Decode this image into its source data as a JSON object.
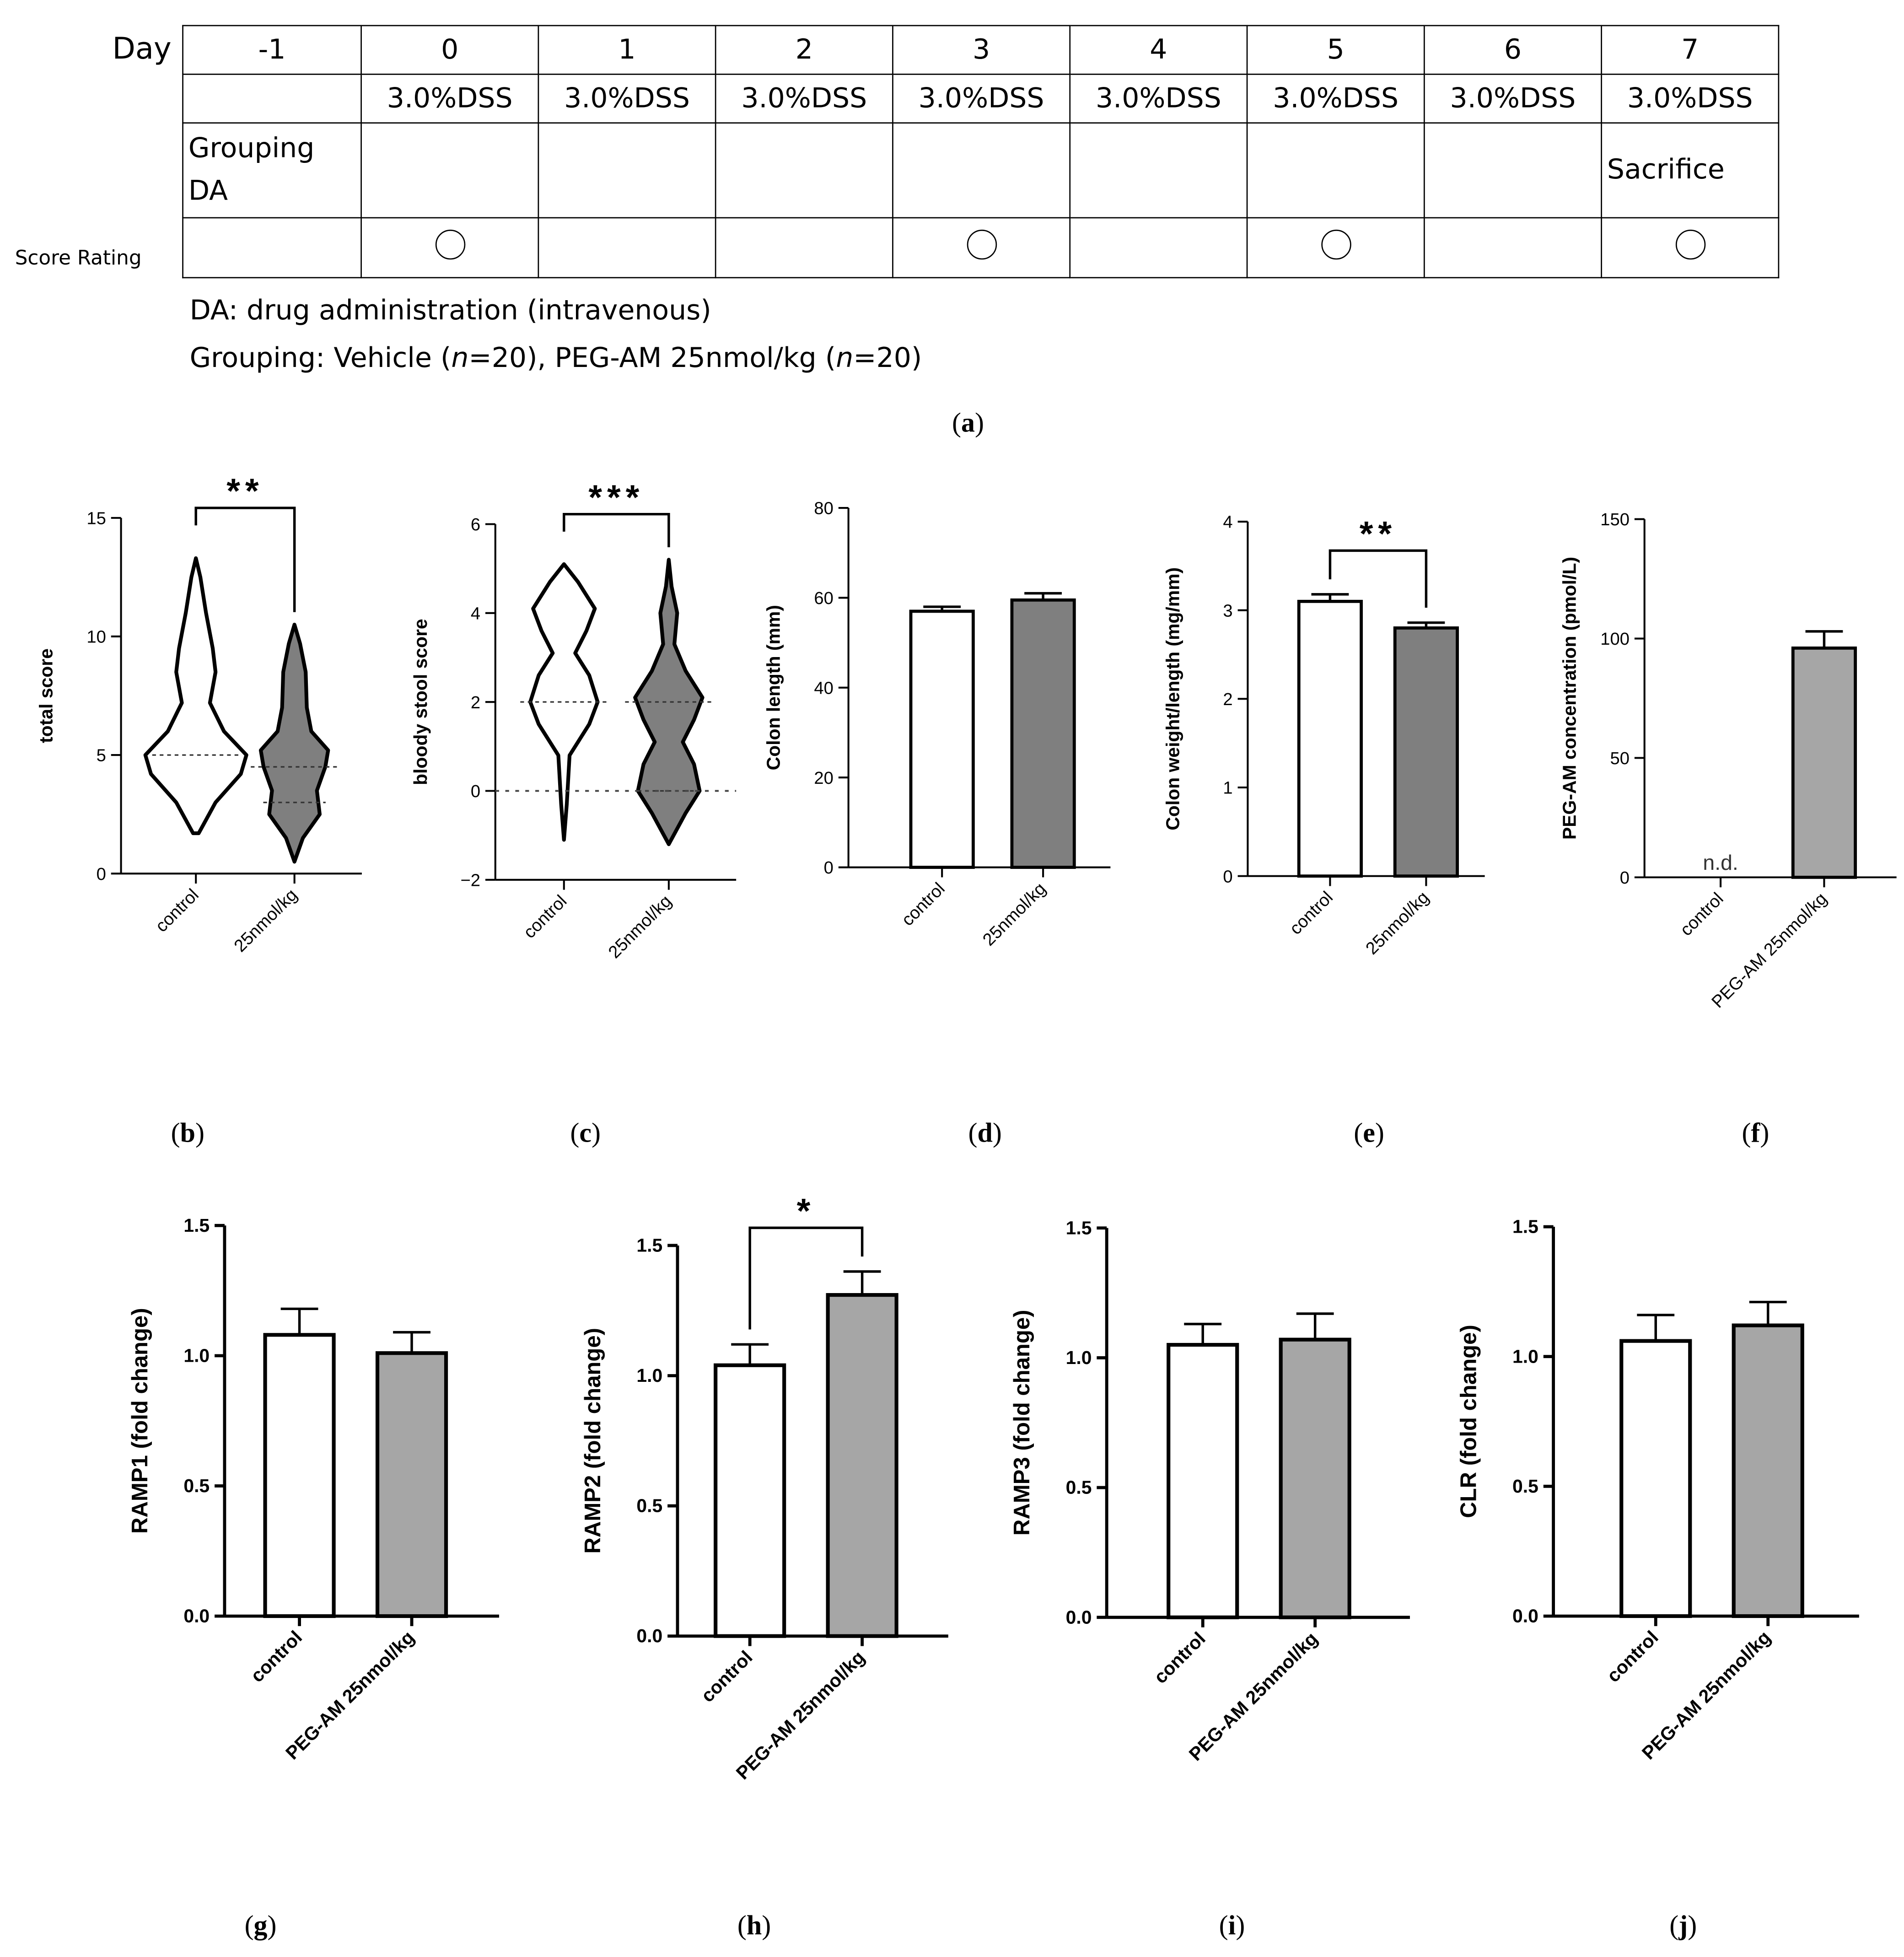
{
  "schedule": {
    "day_label": "Day",
    "days": [
      "-1",
      "0",
      "1",
      "2",
      "3",
      "4",
      "5",
      "6",
      "7"
    ],
    "dss": [
      "",
      "3.0%DSS",
      "3.0%DSS",
      "3.0%DSS",
      "3.0%DSS",
      "3.0%DSS",
      "3.0%DSS",
      "3.0%DSS",
      "3.0%DSS"
    ],
    "grouping_line1": "Grouping",
    "grouping_line2": "DA",
    "sacrifice": "Sacrifice",
    "score_rating_label": "Score Rating",
    "score_days": [
      false,
      true,
      false,
      false,
      true,
      false,
      true,
      false,
      true
    ],
    "note1": "DA: drug administration (intravenous)",
    "note2_prefix": "Grouping: Vehicle (",
    "note2_n": "n",
    "note2_mid": "=20),  PEG-AM 25nmol/kg (",
    "note2_n2": "n",
    "note2_suffix": "=20)"
  },
  "panel_labels": {
    "a": "a",
    "b": "b",
    "c": "c",
    "d": "d",
    "e": "e",
    "f": "f",
    "g": "g",
    "h": "h",
    "i": "i",
    "j": "j"
  },
  "colors": {
    "control_fill": "#ffffff",
    "treatment_dark": "#7f7f7f",
    "treatment_light": "#a6a6a6",
    "stroke": "#000000"
  },
  "chart_data": [
    {
      "id": "b",
      "type": "violin",
      "ylabel": "total score",
      "ylim": [
        0,
        15
      ],
      "yticks": [
        0,
        5,
        10,
        15
      ],
      "categories": [
        "control",
        "25nmol/kg"
      ],
      "series": [
        {
          "name": "control",
          "min": 1.7,
          "max": 13.3,
          "median": 5,
          "q1": 5,
          "q3": 5,
          "profile": [
            [
              1.7,
              0.05
            ],
            [
              3.0,
              0.35
            ],
            [
              4.2,
              0.8
            ],
            [
              5.0,
              0.9
            ],
            [
              6.0,
              0.5
            ],
            [
              7.2,
              0.25
            ],
            [
              8.5,
              0.35
            ],
            [
              9.5,
              0.3
            ],
            [
              11.0,
              0.18
            ],
            [
              12.5,
              0.08
            ],
            [
              13.3,
              0.0
            ]
          ]
        },
        {
          "name": "25nmol/kg",
          "min": 0.5,
          "max": 10.5,
          "median": 4.5,
          "q1": 3,
          "q3": 5,
          "profile": [
            [
              0.5,
              0.0
            ],
            [
              1.5,
              0.15
            ],
            [
              2.5,
              0.45
            ],
            [
              3.5,
              0.4
            ],
            [
              4.5,
              0.55
            ],
            [
              5.2,
              0.6
            ],
            [
              6.0,
              0.3
            ],
            [
              7.0,
              0.22
            ],
            [
              8.5,
              0.2
            ],
            [
              9.7,
              0.1
            ],
            [
              10.5,
              0.0
            ]
          ]
        }
      ],
      "significance": "**"
    },
    {
      "id": "c",
      "type": "violin",
      "ylabel": "bloody stool score",
      "ylim": [
        -2,
        6
      ],
      "yticks": [
        -2,
        0,
        2,
        4,
        6
      ],
      "categories": [
        "control",
        "25nmol/kg"
      ],
      "series": [
        {
          "name": "control",
          "min": -1.1,
          "max": 5.1,
          "median": 2,
          "q1": 2,
          "q3": 2,
          "profile": [
            [
              -1.1,
              0.0
            ],
            [
              -0.3,
              0.05
            ],
            [
              0.8,
              0.1
            ],
            [
              1.5,
              0.45
            ],
            [
              2.0,
              0.6
            ],
            [
              2.6,
              0.45
            ],
            [
              3.1,
              0.2
            ],
            [
              3.6,
              0.4
            ],
            [
              4.1,
              0.55
            ],
            [
              4.7,
              0.25
            ],
            [
              5.1,
              0.0
            ]
          ]
        },
        {
          "name": "25nmol/kg",
          "min": -1.2,
          "max": 5.2,
          "median": 2,
          "q1": 0,
          "q3": 2,
          "profile": [
            [
              -1.2,
              0.0
            ],
            [
              -0.5,
              0.3
            ],
            [
              0.0,
              0.55
            ],
            [
              0.6,
              0.45
            ],
            [
              1.1,
              0.25
            ],
            [
              1.6,
              0.45
            ],
            [
              2.1,
              0.6
            ],
            [
              2.7,
              0.3
            ],
            [
              3.3,
              0.1
            ],
            [
              4.0,
              0.15
            ],
            [
              4.6,
              0.05
            ],
            [
              5.2,
              0.0
            ]
          ]
        }
      ],
      "significance": "***"
    },
    {
      "id": "d",
      "type": "bar",
      "ylabel": "Colon length (mm)",
      "ylim": [
        0,
        80
      ],
      "yticks": [
        0,
        20,
        40,
        60,
        80
      ],
      "categories": [
        "control",
        "25nmol/kg"
      ],
      "values": [
        57,
        59.5
      ],
      "errors": [
        1.0,
        1.5
      ],
      "fills": [
        "#ffffff",
        "#7f7f7f"
      ],
      "significance": ""
    },
    {
      "id": "e",
      "type": "bar",
      "ylabel": "Colon weight/length (mg/mm)",
      "ylim": [
        0,
        4
      ],
      "yticks": [
        0,
        1,
        2,
        3,
        4
      ],
      "categories": [
        "control",
        "25nmol/kg"
      ],
      "values": [
        3.1,
        2.8
      ],
      "errors": [
        0.08,
        0.06
      ],
      "fills": [
        "#ffffff",
        "#7f7f7f"
      ],
      "significance": "**"
    },
    {
      "id": "f",
      "type": "bar",
      "ylabel": "PEG-AM concentration (pmol/L)",
      "ylim": [
        0,
        150
      ],
      "yticks": [
        0,
        50,
        100,
        150
      ],
      "categories": [
        "control",
        "PEG-AM 25nmol/kg"
      ],
      "values": [
        0,
        96
      ],
      "errors": [
        0,
        7
      ],
      "fills": [
        "#ffffff",
        "#a6a6a6"
      ],
      "significance": "",
      "annotation": "n.d."
    },
    {
      "id": "g",
      "type": "bar",
      "ylabel": "RAMP1 (fold change)",
      "ylim": [
        0,
        1.5
      ],
      "yticks": [
        "0.0",
        "0.5",
        "1.0",
        "1.5"
      ],
      "categories": [
        "control",
        "PEG-AM  25nmol/kg"
      ],
      "values": [
        1.08,
        1.01
      ],
      "errors": [
        0.1,
        0.08
      ],
      "fills": [
        "#ffffff",
        "#a6a6a6"
      ],
      "significance": ""
    },
    {
      "id": "h",
      "type": "bar",
      "ylabel": "RAMP2 (fold change)",
      "ylim": [
        0,
        1.5
      ],
      "yticks": [
        "0.0",
        "0.5",
        "1.0",
        "1.5"
      ],
      "categories": [
        "control",
        "PEG-AM  25nmol/kg"
      ],
      "values": [
        1.04,
        1.31
      ],
      "errors": [
        0.08,
        0.09
      ],
      "fills": [
        "#ffffff",
        "#a6a6a6"
      ],
      "significance": "*"
    },
    {
      "id": "i",
      "type": "bar",
      "ylabel": "RAMP3 (fold change)",
      "ylim": [
        0,
        1.5
      ],
      "yticks": [
        "0.0",
        "0.5",
        "1.0",
        "1.5"
      ],
      "categories": [
        "control",
        "PEG-AM  25nmol/kg"
      ],
      "values": [
        1.05,
        1.07
      ],
      "errors": [
        0.08,
        0.1
      ],
      "fills": [
        "#ffffff",
        "#a6a6a6"
      ],
      "significance": ""
    },
    {
      "id": "j",
      "type": "bar",
      "ylabel": "CLR (fold change)",
      "ylim": [
        0,
        1.5
      ],
      "yticks": [
        "0.0",
        "0.5",
        "1.0",
        "1.5"
      ],
      "categories": [
        "control",
        "PEG-AM  25nmol/kg"
      ],
      "values": [
        1.06,
        1.12
      ],
      "errors": [
        0.1,
        0.09
      ],
      "fills": [
        "#ffffff",
        "#a6a6a6"
      ],
      "significance": ""
    }
  ]
}
